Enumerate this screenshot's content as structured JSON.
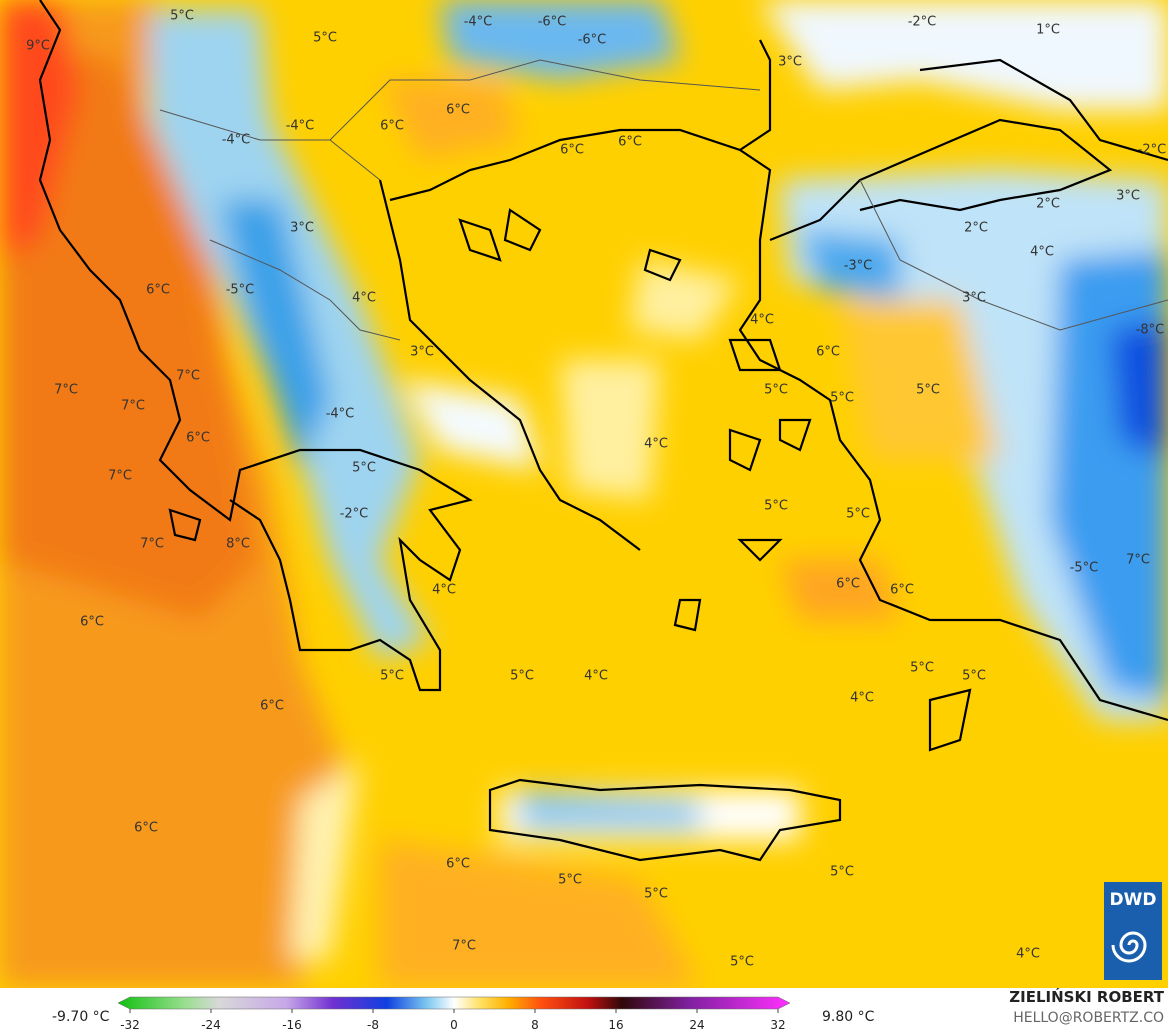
{
  "map": {
    "labels": [
      "9°C",
      "5°C",
      "5°C",
      "-4°C",
      "-6°C",
      "-6°C",
      "-2°C",
      "1°C",
      "3°C",
      "6°C",
      "6°C",
      "-4°C",
      "-4°C",
      "6°C",
      "6°C",
      "-2°C",
      "3°C",
      "2°C",
      "2°C",
      "4°C",
      "3°C",
      "-3°C",
      "3°C",
      "6°C",
      "-5°C",
      "4°C",
      "4°C",
      "-8°C",
      "3°C",
      "6°C",
      "7°C",
      "7°C",
      "7°C",
      "5°C",
      "5°C",
      "5°C",
      "-4°C",
      "6°C",
      "4°C",
      "7°C",
      "5°C",
      "5°C",
      "5°C",
      "-2°C",
      "7°C",
      "8°C",
      "-5°C",
      "7°C",
      "6°C",
      "6°C",
      "4°C",
      "6°C",
      "5°C",
      "5°C",
      "5°C",
      "5°C",
      "4°C",
      "4°C",
      "6°C",
      "6°C",
      "6°C",
      "5°C",
      "5°C",
      "5°C",
      "7°C",
      "5°C",
      "4°C"
    ],
    "logo": "DWD"
  },
  "legend": {
    "min_label": "-9.70 °C",
    "max_label": "9.80 °C",
    "ticks": [
      -32,
      -24,
      -16,
      -8,
      0,
      8,
      16,
      24,
      32
    ]
  },
  "credit": {
    "author": "ZIELIŃSKI ROBERT",
    "contact": "HELLO@ROBERTZ.CO"
  }
}
